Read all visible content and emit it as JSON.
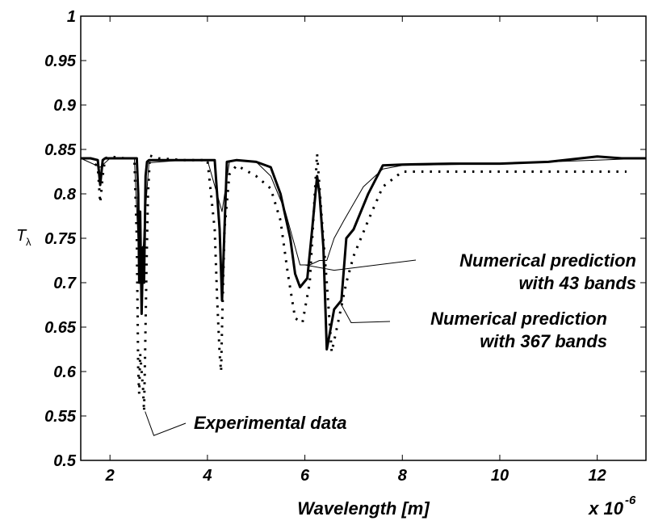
{
  "chart_data": {
    "type": "line",
    "xlabel": "Wavelength [m]",
    "x_exponent_label": "x 10",
    "x_exponent_power": "-6",
    "ylabel_base": "T",
    "ylabel_sub": "λ",
    "xlim": [
      1.4,
      13.0
    ],
    "ylim": [
      0.5,
      1.0
    ],
    "x_ticks": [
      2,
      4,
      6,
      8,
      10,
      12
    ],
    "x_tick_labels": [
      "2",
      "4",
      "6",
      "8",
      "10",
      "12"
    ],
    "y_ticks": [
      0.5,
      0.55,
      0.6,
      0.65,
      0.7,
      0.75,
      0.8,
      0.85,
      0.9,
      0.95,
      1.0
    ],
    "y_tick_labels": [
      "0.5",
      "0.55",
      "0.6",
      "0.65",
      "0.7",
      "0.75",
      "0.8",
      "0.85",
      "0.9",
      "0.95",
      "1"
    ],
    "grid": false,
    "series": [
      {
        "style": "thick-solid",
        "x": [
          1.4,
          1.6,
          1.75,
          1.8,
          1.85,
          1.9,
          2.0,
          2.3,
          2.55,
          2.58,
          2.6,
          2.62,
          2.65,
          2.68,
          2.7,
          2.73,
          2.76,
          2.8,
          3.0,
          3.5,
          4.0,
          4.15,
          4.25,
          4.3,
          4.35,
          4.4,
          4.6,
          5.0,
          5.3,
          5.5,
          5.7,
          5.8,
          5.9,
          6.05,
          6.15,
          6.25,
          6.3,
          6.38,
          6.45,
          6.5,
          6.6,
          6.75,
          6.85,
          7.0,
          7.3,
          7.6,
          8.0,
          9.0,
          10.0,
          11.0,
          12.0,
          12.5,
          13.0
        ],
        "y": [
          0.84,
          0.84,
          0.838,
          0.81,
          0.838,
          0.84,
          0.84,
          0.84,
          0.84,
          0.8,
          0.7,
          0.78,
          0.665,
          0.74,
          0.7,
          0.82,
          0.836,
          0.838,
          0.838,
          0.838,
          0.838,
          0.838,
          0.76,
          0.68,
          0.76,
          0.836,
          0.838,
          0.836,
          0.83,
          0.8,
          0.75,
          0.71,
          0.695,
          0.705,
          0.76,
          0.82,
          0.8,
          0.74,
          0.625,
          0.64,
          0.67,
          0.68,
          0.75,
          0.76,
          0.8,
          0.832,
          0.833,
          0.834,
          0.834,
          0.836,
          0.842,
          0.84,
          0.84
        ]
      },
      {
        "style": "thin-solid",
        "name": "Numerical prediction with 43 bands",
        "x": [
          1.4,
          1.8,
          2.0,
          2.5,
          2.6,
          2.65,
          2.7,
          2.8,
          3.5,
          4.0,
          4.3,
          4.45,
          4.6,
          5.0,
          5.3,
          5.6,
          5.9,
          6.1,
          6.3,
          6.45,
          6.6,
          6.8,
          7.2,
          7.6,
          8.0,
          10.0,
          12.0,
          13.0
        ],
        "y": [
          0.84,
          0.83,
          0.84,
          0.84,
          0.72,
          0.7,
          0.76,
          0.835,
          0.838,
          0.838,
          0.78,
          0.836,
          0.838,
          0.836,
          0.82,
          0.78,
          0.72,
          0.72,
          0.725,
          0.725,
          0.75,
          0.77,
          0.808,
          0.828,
          0.832,
          0.834,
          0.838,
          0.84
        ]
      },
      {
        "style": "dotted",
        "name": "Experimental data",
        "x": [
          1.4,
          1.6,
          1.75,
          1.8,
          1.85,
          1.9,
          2.0,
          2.3,
          2.5,
          2.55,
          2.58,
          2.6,
          2.62,
          2.65,
          2.68,
          2.7,
          2.72,
          2.75,
          2.78,
          2.82,
          3.0,
          3.5,
          4.0,
          4.15,
          4.2,
          4.25,
          4.28,
          4.3,
          4.35,
          4.45,
          4.6,
          4.8,
          5.0,
          5.3,
          5.5,
          5.65,
          5.8,
          5.95,
          6.1,
          6.25,
          6.35,
          6.45,
          6.55,
          6.7,
          6.85,
          7.0,
          7.3,
          7.6,
          8.0,
          10.0,
          12.0,
          12.6
        ],
        "y": [
          0.84,
          0.84,
          0.83,
          0.79,
          0.82,
          0.84,
          0.842,
          0.84,
          0.84,
          0.75,
          0.6,
          0.575,
          0.62,
          0.6,
          0.58,
          0.555,
          0.62,
          0.72,
          0.8,
          0.843,
          0.84,
          0.838,
          0.838,
          0.76,
          0.68,
          0.62,
          0.6,
          0.65,
          0.76,
          0.822,
          0.832,
          0.826,
          0.82,
          0.806,
          0.77,
          0.71,
          0.66,
          0.655,
          0.7,
          0.845,
          0.77,
          0.7,
          0.622,
          0.66,
          0.7,
          0.73,
          0.77,
          0.808,
          0.825,
          0.825,
          0.825,
          0.825
        ]
      }
    ],
    "annotations": [
      {
        "line1": "Numerical prediction",
        "line2": "with 43 bands"
      },
      {
        "line1": "Numerical prediction",
        "line2": "with 367 bands"
      },
      {
        "line1": "Experimental data",
        "line2": ""
      }
    ]
  }
}
